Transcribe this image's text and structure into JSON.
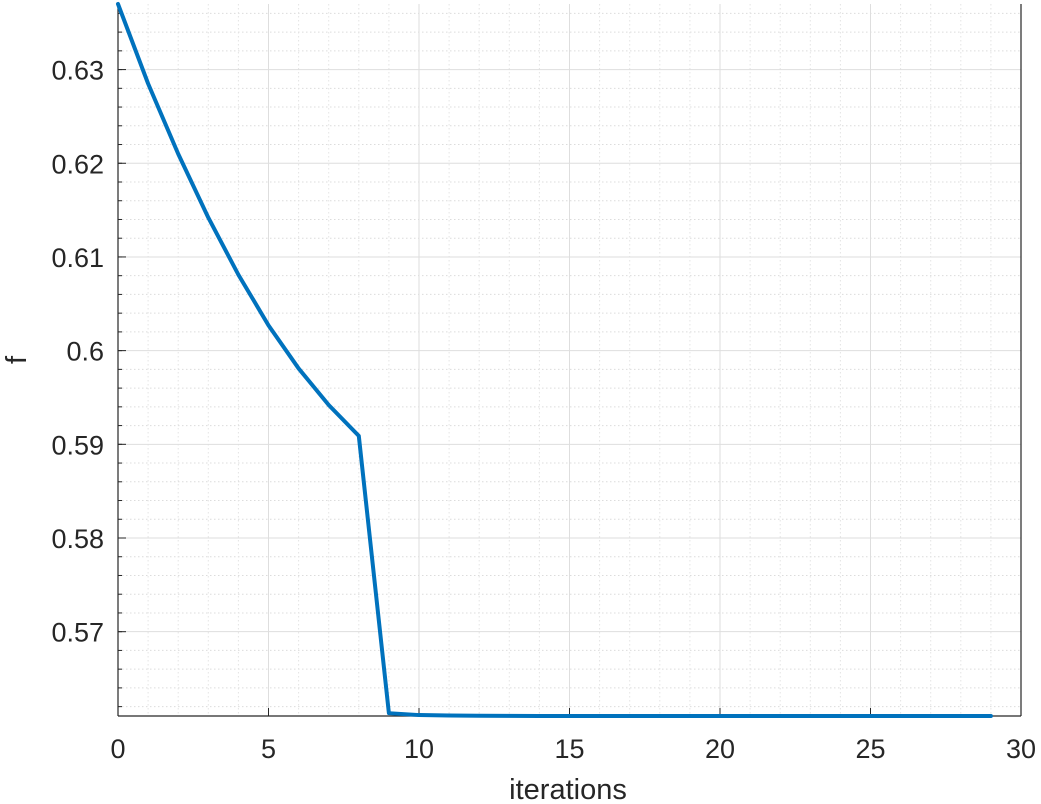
{
  "chart_data": {
    "type": "line",
    "title": "",
    "xlabel": "iterations",
    "ylabel": "f",
    "xlim": [
      0,
      30
    ],
    "ylim": [
      0.561,
      0.637
    ],
    "xticks": [
      0,
      5,
      10,
      15,
      20,
      25,
      30
    ],
    "xtick_labels": [
      "0",
      "5",
      "10",
      "15",
      "20",
      "25",
      "30"
    ],
    "yticks": [
      0.57,
      0.58,
      0.59,
      0.6,
      0.61,
      0.62,
      0.63
    ],
    "ytick_labels": [
      "0.57",
      "0.58",
      "0.59",
      "0.6",
      "0.61",
      "0.62",
      "0.63"
    ],
    "grid": true,
    "minor_grid": true,
    "line_color": "#0072BD",
    "series": [
      {
        "x": [
          0,
          1,
          2,
          3,
          4,
          5,
          6,
          7,
          8,
          9,
          10,
          11,
          12,
          13,
          14,
          15,
          16,
          17,
          18,
          19,
          20,
          21,
          22,
          23,
          24,
          25,
          26,
          27,
          28,
          29
        ],
        "values": [
          0.637,
          0.6285,
          0.621,
          0.6142,
          0.6081,
          0.6027,
          0.5981,
          0.5942,
          0.5909,
          0.5613,
          0.5611,
          0.56105,
          0.56102,
          0.56101,
          0.561,
          0.561,
          0.561,
          0.561,
          0.561,
          0.561,
          0.561,
          0.561,
          0.561,
          0.561,
          0.561,
          0.561,
          0.561,
          0.561,
          0.561,
          0.561
        ]
      }
    ]
  }
}
